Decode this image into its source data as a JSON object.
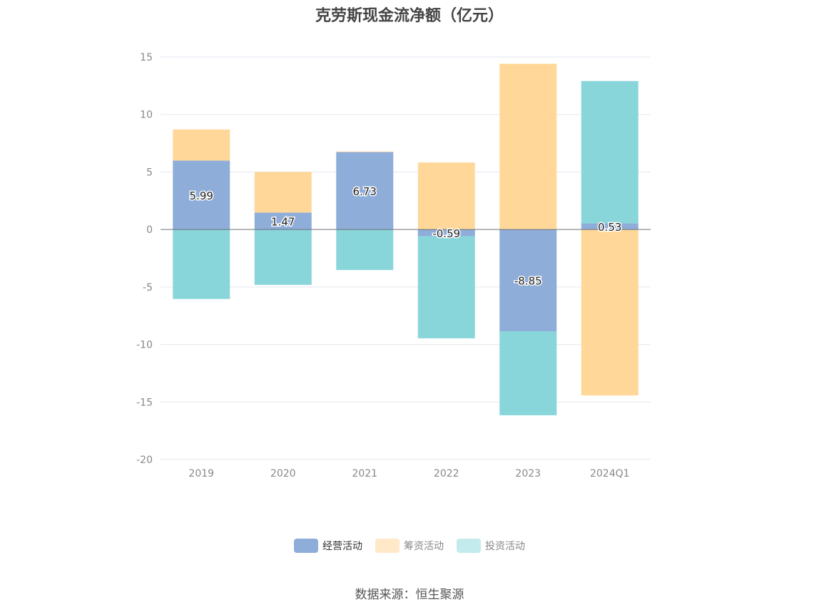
{
  "chart_data": {
    "type": "bar",
    "stacked": true,
    "title": "克劳斯现金流净额（亿元）",
    "categories": [
      "2019",
      "2020",
      "2021",
      "2022",
      "2023",
      "2024Q1"
    ],
    "ylim": [
      -20,
      15
    ],
    "yticks": [
      15,
      10,
      5,
      0,
      -5,
      -10,
      -15,
      -20
    ],
    "grid": true,
    "legend_position": "bottom",
    "series": [
      {
        "name": "经营活动",
        "color": "#8eadd9",
        "values": [
          5.99,
          1.47,
          6.73,
          -0.59,
          -8.85,
          0.53
        ],
        "labels": [
          "5.99",
          "1.47",
          "6.73",
          "-0.59",
          "-8.85",
          "0.53"
        ]
      },
      {
        "name": "筹资活动",
        "color": "#ffd899",
        "values": [
          2.71,
          3.53,
          0.05,
          5.83,
          14.41,
          -14.43
        ]
      },
      {
        "name": "投资活动",
        "color": "#88d6da",
        "values": [
          -6.04,
          -4.81,
          -3.52,
          -8.87,
          -7.3,
          12.38
        ]
      }
    ]
  },
  "legend": {
    "items": [
      {
        "label": "经营活动",
        "color": "#8eadd9",
        "swatch": "#8eadd9",
        "active": true
      },
      {
        "label": "筹资活动",
        "color": "#ffd899",
        "swatch": "#ffe9c8",
        "active": false
      },
      {
        "label": "投资活动",
        "color": "#88d6da",
        "swatch": "#c3ebed",
        "active": false
      }
    ]
  },
  "source": "数据来源：恒生聚源"
}
